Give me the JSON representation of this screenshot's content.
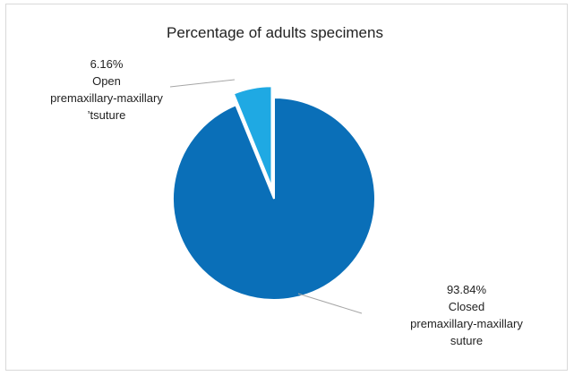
{
  "chart_data": {
    "type": "pie",
    "title": "Percentage of adults specimens",
    "slices": [
      {
        "value": 93.84,
        "value_label": "93.84%",
        "label_lines": [
          "Closed",
          "premaxillary-maxillary",
          "suture"
        ],
        "color": "#0a6fb8",
        "exploded": false
      },
      {
        "value": 6.16,
        "value_label": "6.16%",
        "label_lines": [
          "Open",
          "premaxillary-maxillary",
          "’tsuture"
        ],
        "color": "#1fa9e3",
        "exploded": true
      }
    ],
    "start": "12 o'clock",
    "direction": "clockwise",
    "legend": "none",
    "data_labels": "outside with leader lines"
  }
}
